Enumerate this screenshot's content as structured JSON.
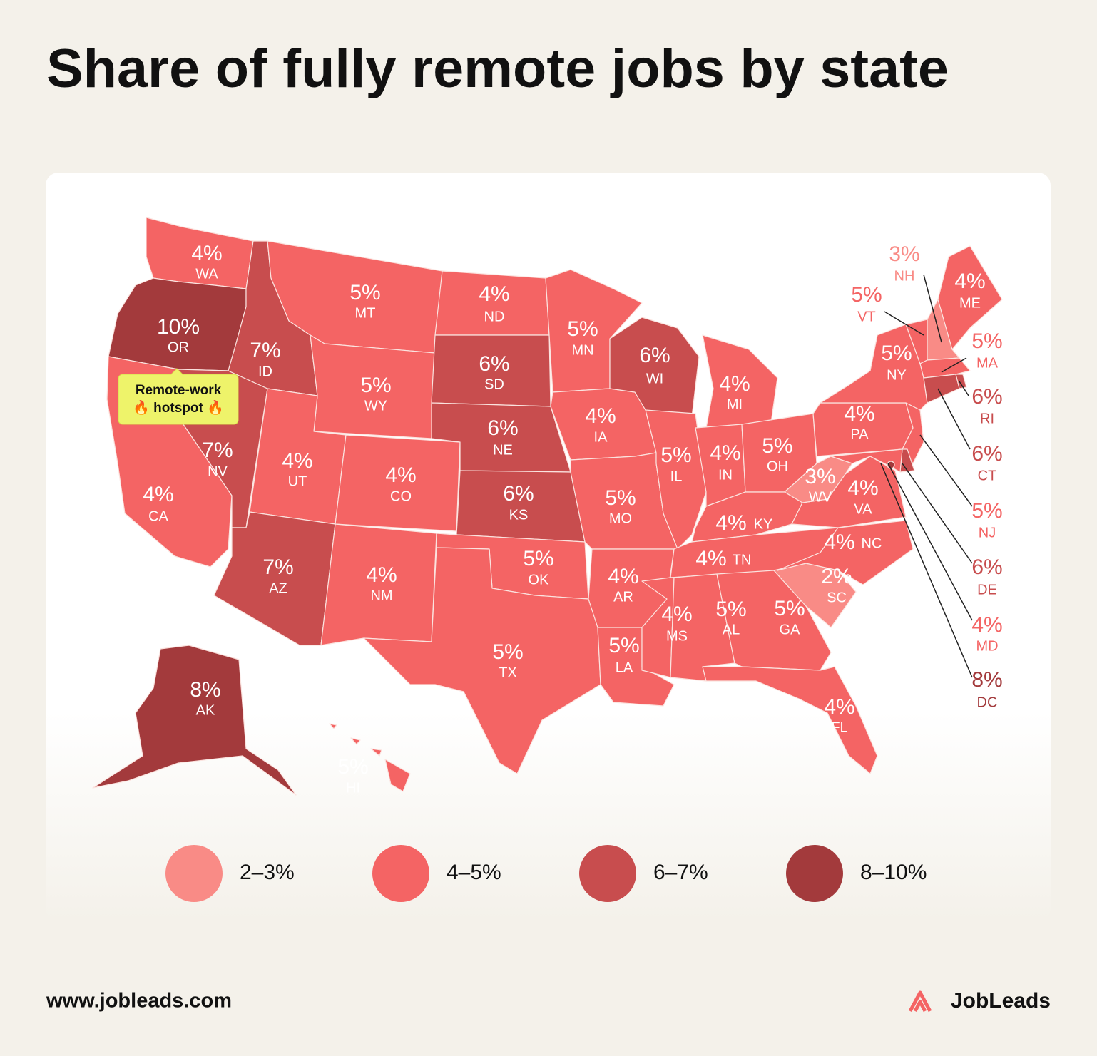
{
  "chart_data": {
    "type": "choropleth",
    "title": "Share of fully remote jobs by state",
    "categories": [
      "WA",
      "OR",
      "CA",
      "NV",
      "ID",
      "MT",
      "WY",
      "UT",
      "CO",
      "AZ",
      "NM",
      "ND",
      "SD",
      "NE",
      "KS",
      "OK",
      "TX",
      "MN",
      "IA",
      "MO",
      "AR",
      "LA",
      "WI",
      "IL",
      "MI",
      "IN",
      "OH",
      "KY",
      "TN",
      "MS",
      "AL",
      "GA",
      "FL",
      "SC",
      "NC",
      "VA",
      "WV",
      "PA",
      "NY",
      "VT",
      "NH",
      "ME",
      "MA",
      "RI",
      "CT",
      "NJ",
      "DE",
      "MD",
      "DC",
      "AK",
      "HI"
    ],
    "values": [
      4,
      10,
      4,
      7,
      7,
      5,
      5,
      4,
      4,
      7,
      4,
      4,
      6,
      6,
      6,
      5,
      5,
      5,
      4,
      5,
      4,
      5,
      6,
      5,
      4,
      4,
      5,
      4,
      4,
      4,
      5,
      5,
      4,
      2,
      4,
      4,
      3,
      4,
      5,
      5,
      3,
      4,
      5,
      6,
      6,
      5,
      6,
      4,
      8,
      8,
      5
    ],
    "value_labels": [
      "4%",
      "10%",
      "4%",
      "7%",
      "7%",
      "5%",
      "5%",
      "4%",
      "4%",
      "7%",
      "4%",
      "4%",
      "6%",
      "6%",
      "6%",
      "5%",
      "5%",
      "5%",
      "4%",
      "5%",
      "4%",
      "5%",
      "6%",
      "5%",
      "4%",
      "4%",
      "5%",
      "4%",
      "4%",
      "4%",
      "5%",
      "5%",
      "4%",
      "2%",
      "4%",
      "4%",
      "3%",
      "4%",
      "5%",
      "5%",
      "3%",
      "4%",
      "5%",
      "6%",
      "6%",
      "5%",
      "6%",
      "4%",
      "8%",
      "8%",
      "5%"
    ],
    "legend": [
      {
        "label": "2–3%",
        "range": [
          2,
          3
        ],
        "color": "#f98b86"
      },
      {
        "label": "4–5%",
        "range": [
          4,
          5
        ],
        "color": "#f46464"
      },
      {
        "label": "6–7%",
        "range": [
          6,
          7
        ],
        "color": "#c84d4e"
      },
      {
        "label": "8–10%",
        "range": [
          8,
          10
        ],
        "color": "#a33a3c"
      }
    ],
    "annotation": [
      "Remote-work",
      "🔥 hotspot 🔥"
    ]
  },
  "footer": {
    "url": "www.jobleads.com",
    "brand": "JobLeads"
  }
}
